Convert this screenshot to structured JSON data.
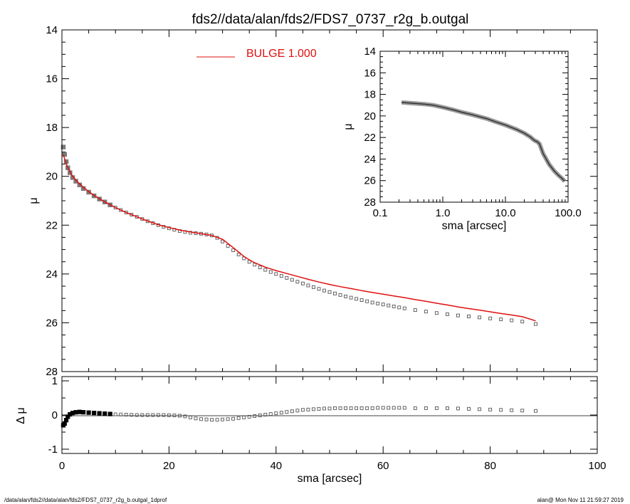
{
  "title": "fds2//data/alan/fds2/FDS7_0737_r2g_b.outgal",
  "footer": {
    "left": "/data/alan/fds2//data/alan/fds2/FDS7_0737_r2g_b.outgal_1dprof",
    "right": "alan@  Mon Nov 11 21:59:27 2019"
  },
  "colors": {
    "data": "#7a7a7a",
    "model": "#e01010",
    "axes": "#000000"
  },
  "chart_data": [
    {
      "type": "scatter",
      "panel": "main",
      "xlabel": "",
      "ylabel": "μ",
      "xlim": [
        0,
        100
      ],
      "ylim": [
        28,
        14
      ],
      "y_inverted": true,
      "xticks": [
        "0",
        "20",
        "40",
        "60",
        "80",
        "100"
      ],
      "yticks": [
        "14",
        "16",
        "18",
        "20",
        "22",
        "24",
        "26",
        "28"
      ],
      "legend": {
        "label": "BULGE  1.000",
        "position": "top-center"
      },
      "series": [
        {
          "style": "markers",
          "x": [
            0.25,
            0.5,
            0.8,
            1.1,
            1.5,
            2,
            2.6,
            3.3,
            4,
            5,
            6,
            7,
            8,
            9,
            10,
            11,
            12,
            13,
            14,
            15,
            16,
            17,
            18,
            19,
            20,
            21,
            22,
            23,
            24,
            25,
            26,
            27,
            28,
            29,
            30,
            31,
            32,
            33,
            34,
            35,
            36,
            37,
            38,
            39,
            40,
            41,
            42,
            43,
            44,
            45,
            46,
            47,
            48,
            49,
            50,
            51,
            52,
            53,
            54,
            55,
            56,
            57,
            58,
            59,
            60,
            61,
            62,
            63,
            64,
            66,
            68,
            70,
            72,
            74,
            76,
            78,
            80,
            82,
            84,
            86,
            88.5
          ],
          "y": [
            18.8,
            19.1,
            19.4,
            19.65,
            19.85,
            20.05,
            20.2,
            20.35,
            20.5,
            20.65,
            20.8,
            20.93,
            21.05,
            21.17,
            21.28,
            21.38,
            21.48,
            21.57,
            21.66,
            21.75,
            21.84,
            21.92,
            22.0,
            22.07,
            22.13,
            22.19,
            22.24,
            22.28,
            22.31,
            22.33,
            22.35,
            22.38,
            22.42,
            22.52,
            22.67,
            22.85,
            23.03,
            23.2,
            23.36,
            23.5,
            23.62,
            23.73,
            23.83,
            23.92,
            24.0,
            24.08,
            24.16,
            24.24,
            24.32,
            24.39,
            24.47,
            24.54,
            24.61,
            24.68,
            24.74,
            24.8,
            24.86,
            24.92,
            24.97,
            25.02,
            25.07,
            25.12,
            25.17,
            25.21,
            25.25,
            25.29,
            25.33,
            25.37,
            25.41,
            25.48,
            25.54,
            25.6,
            25.65,
            25.7,
            25.74,
            25.78,
            25.82,
            25.86,
            25.9,
            25.95,
            26.05
          ]
        },
        {
          "style": "line",
          "color": "model",
          "x": [
            0.25,
            0.6,
            1,
            1.5,
            2,
            3,
            4,
            5,
            6,
            8,
            10,
            12,
            14,
            16,
            18,
            20,
            22,
            24,
            26,
            28,
            30,
            31,
            32,
            33,
            34,
            35,
            36,
            38,
            40,
            42,
            44,
            46,
            48,
            50,
            52,
            54,
            56,
            58,
            60,
            62,
            64,
            66,
            68,
            70,
            72,
            74,
            76,
            78,
            80,
            82,
            84,
            86,
            88.5
          ],
          "y": [
            19.1,
            19.35,
            19.6,
            19.8,
            20.0,
            20.25,
            20.45,
            20.62,
            20.78,
            21.05,
            21.28,
            21.48,
            21.66,
            21.83,
            21.98,
            22.1,
            22.2,
            22.28,
            22.35,
            22.42,
            22.58,
            22.75,
            22.92,
            23.1,
            23.28,
            23.42,
            23.54,
            23.72,
            23.86,
            23.98,
            24.1,
            24.22,
            24.33,
            24.43,
            24.52,
            24.6,
            24.68,
            24.76,
            24.83,
            24.9,
            24.97,
            25.05,
            25.12,
            25.2,
            25.27,
            25.35,
            25.42,
            25.48,
            25.55,
            25.62,
            25.68,
            25.75,
            25.92
          ]
        }
      ]
    },
    {
      "type": "line",
      "panel": "inset",
      "xlabel": "sma [arcsec]",
      "ylabel": "μ",
      "xscale": "log",
      "xlim": [
        0.1,
        100
      ],
      "ylim": [
        28,
        14
      ],
      "y_inverted": true,
      "xticks": [
        "0.1",
        "1.0",
        "10.0",
        "100.0"
      ],
      "yticks": [
        "14",
        "16",
        "18",
        "20",
        "22",
        "24",
        "26",
        "28"
      ],
      "series": [
        {
          "style": "thick-line",
          "x": [
            0.22,
            0.3,
            0.5,
            0.7,
            1.0,
            1.5,
            2,
            3,
            5,
            7,
            10,
            15,
            20,
            25,
            28,
            30,
            32,
            35,
            40,
            50,
            60,
            70,
            80,
            88
          ],
          "y": [
            18.75,
            18.8,
            18.9,
            19.0,
            19.2,
            19.45,
            19.65,
            19.9,
            20.25,
            20.55,
            20.85,
            21.25,
            21.6,
            21.95,
            22.2,
            22.32,
            22.38,
            22.6,
            23.5,
            24.5,
            25.1,
            25.5,
            25.8,
            26.05
          ]
        }
      ]
    },
    {
      "type": "scatter",
      "panel": "residual",
      "xlabel": "sma [arcsec]",
      "ylabel": "Δ μ",
      "xlim": [
        0,
        100
      ],
      "ylim": [
        -1,
        1
      ],
      "xticks": [
        "0",
        "20",
        "40",
        "60",
        "80",
        "100"
      ],
      "yticks": [
        "-1",
        "0",
        "1"
      ],
      "series": [
        {
          "style": "markers",
          "x": [
            0.25,
            0.5,
            0.8,
            1.1,
            1.5,
            2,
            2.6,
            3.3,
            4,
            5,
            6,
            7,
            8,
            9,
            10,
            11,
            12,
            13,
            14,
            15,
            16,
            17,
            18,
            19,
            20,
            21,
            22,
            23,
            24,
            25,
            26,
            27,
            28,
            29,
            30,
            31,
            32,
            33,
            34,
            35,
            36,
            37,
            38,
            39,
            40,
            41,
            42,
            43,
            44,
            45,
            46,
            47,
            48,
            49,
            50,
            51,
            52,
            53,
            54,
            55,
            56,
            57,
            58,
            59,
            60,
            61,
            62,
            63,
            64,
            66,
            68,
            70,
            72,
            74,
            76,
            78,
            80,
            82,
            84,
            86,
            88.5
          ],
          "y": [
            -0.3,
            -0.25,
            -0.15,
            -0.05,
            0.02,
            0.06,
            0.08,
            0.09,
            0.08,
            0.07,
            0.06,
            0.05,
            0.04,
            0.03,
            0.02,
            0.015,
            0.01,
            0.005,
            0.0,
            0.0,
            0.0,
            0.0,
            0.0,
            0.0,
            -0.005,
            -0.01,
            -0.02,
            -0.04,
            -0.07,
            -0.1,
            -0.12,
            -0.13,
            -0.14,
            -0.14,
            -0.13,
            -0.12,
            -0.11,
            -0.09,
            -0.07,
            -0.05,
            -0.03,
            -0.01,
            0.01,
            0.03,
            0.05,
            0.07,
            0.09,
            0.11,
            0.13,
            0.15,
            0.16,
            0.17,
            0.18,
            0.19,
            0.19,
            0.2,
            0.2,
            0.2,
            0.2,
            0.2,
            0.2,
            0.2,
            0.2,
            0.21,
            0.21,
            0.21,
            0.21,
            0.21,
            0.21,
            0.2,
            0.2,
            0.2,
            0.2,
            0.19,
            0.18,
            0.17,
            0.16,
            0.15,
            0.14,
            0.13,
            0.12
          ]
        }
      ]
    }
  ]
}
